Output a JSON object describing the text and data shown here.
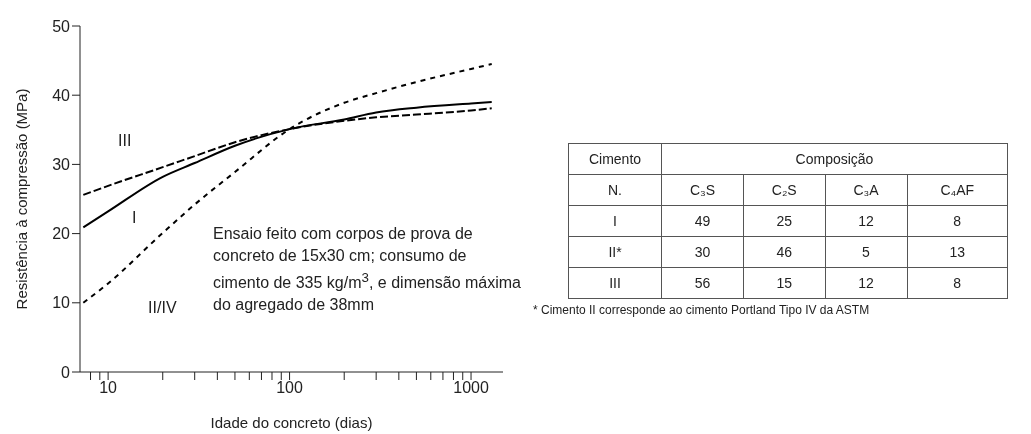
{
  "chart_data": [
    {
      "type": "line",
      "xlabel": "Idade do concreto (dias)",
      "ylabel": "Resistência à compressão (MPa)",
      "log": "x",
      "xlim": [
        7,
        1500
      ],
      "xticks": [
        {
          "value": 8,
          "label": null
        },
        {
          "value": 9,
          "label": null
        },
        10,
        {
          "value": 20,
          "label": null
        },
        {
          "value": 30,
          "label": null
        },
        {
          "value": 40,
          "label": null
        },
        {
          "value": 50,
          "label": null
        },
        {
          "value": 60,
          "label": null
        },
        {
          "value": 70,
          "label": null
        },
        {
          "value": 80,
          "label": null
        },
        {
          "value": 90,
          "label": null
        },
        100,
        {
          "value": 200,
          "label": null
        },
        {
          "value": 300,
          "label": null
        },
        {
          "value": 400,
          "label": null
        },
        {
          "value": 500,
          "label": null
        },
        {
          "value": 600,
          "label": null
        },
        {
          "value": 700,
          "label": null
        },
        {
          "value": 800,
          "label": null
        },
        {
          "value": 900,
          "label": null
        },
        1000
      ],
      "ylim": [
        0,
        50
      ],
      "yticks": [
        0,
        10,
        20,
        30,
        40,
        50
      ],
      "marker": "none",
      "x": [
        7.3,
        10,
        20,
        30,
        50,
        100,
        200,
        300,
        500,
        1000,
        1300
      ],
      "series": [
        {
          "name": "III",
          "color": "#000000",
          "line_style": "dashed",
          "values": [
            25.6,
            26.9,
            29.6,
            31.2,
            33.2,
            35.1,
            36.3,
            36.8,
            37.2,
            37.8,
            38.1
          ]
        },
        {
          "name": "I",
          "color": "#000000",
          "line_style": "solid",
          "values": [
            20.9,
            23.2,
            28.2,
            30.2,
            32.7,
            35.1,
            36.5,
            37.5,
            38.2,
            38.8,
            39.0
          ]
        },
        {
          "name": "II/IV",
          "color": "#000000",
          "line_style": "dotted",
          "values": [
            10.0,
            12.8,
            20.1,
            24.2,
            28.9,
            35.1,
            38.9,
            40.3,
            41.9,
            43.8,
            44.5
          ]
        }
      ],
      "annotations": [
        "Ensaio feito com corpos de prova de concreto de 15x30 cm; consumo de cimento de 335 kg/m$^{3}$, e dimensão máxima do agregado de 38mm"
      ]
    },
    {
      "type": "other",
      "legend_title": "Cimento N.",
      "title": "Composição",
      "categories": [
        "C₃S",
        "C₂S",
        "C₃A",
        "C₄AF"
      ],
      "data_labels": true,
      "series": [
        {
          "name": "I",
          "values": [
            49,
            25,
            12,
            8
          ]
        },
        {
          "name": "II*",
          "values": [
            30,
            46,
            5,
            13
          ]
        },
        {
          "name": "III",
          "values": [
            56,
            15,
            12,
            8
          ]
        }
      ],
      "annotations": [
        "* Cimento II corresponde ao cimento Portland Tipo IV da ASTM"
      ]
    }
  ]
}
